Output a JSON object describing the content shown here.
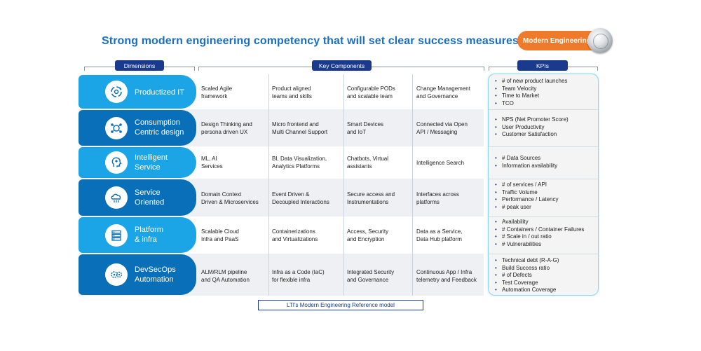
{
  "title": "Strong modern engineering competency that will set clear success measures",
  "badge": {
    "label": "Modern Engineering"
  },
  "headers": {
    "dimensions": "Dimensions",
    "components": "Key Components",
    "kpis": "KPIs"
  },
  "colors": {
    "title": "#1b6ec2",
    "badge": "#f07a2c",
    "header_pill": "#1a3a8e",
    "dim_light": "#1ba4e6",
    "dim_dark": "#0a6fb9"
  },
  "rows": [
    {
      "dimension": "Productized IT",
      "icon": "gear-cycle-icon",
      "components": [
        "Scaled Agile\nframework",
        "Product aligned\nteams and skills",
        "Configurable PODs\nand scalable team",
        "Change Management\nand Governance"
      ],
      "kpis": [
        "# of new product launches",
        "Team Velocity",
        "Time to Market",
        "TCO"
      ]
    },
    {
      "dimension": "Consumption\nCentric design",
      "icon": "people-network-icon",
      "components": [
        "Design Thinking and\npersona driven UX",
        "Micro frontend and\nMulti Channel Support",
        "Smart Devices\nand IoT",
        "Connected via Open\nAPI / Messaging"
      ],
      "kpis": [
        "NPS (Net Promoter Score)",
        "User Productivity",
        "Customer Satisfaction"
      ]
    },
    {
      "dimension": "Intelligent\nService",
      "icon": "brain-head-icon",
      "components": [
        "ML, AI\nServices",
        "BI, Data Visualization,\nAnalytics Platforms",
        "Chatbots, Virtual\nassistants",
        "Intelligence Search"
      ],
      "kpis": [
        "# Data Sources",
        "Information availability"
      ]
    },
    {
      "dimension": "Service\nOriented",
      "icon": "cloud-service-icon",
      "components": [
        "Domain Context\nDriven & Microservices",
        "Event Driven &\nDecoupled Interactions",
        "Secure access and\nInstrumentations",
        "Interfaces across\nplatforms"
      ],
      "kpis": [
        "# of services / API",
        "Traffic Volume",
        "Performance / Latency",
        "# peak user"
      ]
    },
    {
      "dimension": "Platform\n& infra",
      "icon": "server-stack-icon",
      "components": [
        "Scalable Cloud\nInfra and PaaS",
        "Containerizations\nand Virtualizations",
        "Access, Security\nand Encryption",
        "Data as a Service,\nData Hub platform"
      ],
      "kpis": [
        "Availability",
        "# Containers / Container Failures",
        "# Scale in / out ratio",
        "# Vulnerabilities"
      ]
    },
    {
      "dimension": "DevSecOps\nAutomation",
      "icon": "gears-icon",
      "components": [
        "ALM/RLM pipeline\nand QA Automation",
        "Infra as a Code (IaC)\nfor flexible infra",
        "Integrated Security\nand Governance",
        "Continuous App /  Infra\ntelemetry and Feedback"
      ],
      "kpis": [
        "Technical debt (R-A-G)",
        "Build Success ratio",
        "# of Defects",
        "Test Coverage",
        "Automation Coverage"
      ]
    }
  ],
  "footer": "LTI's Modern Engineering Reference model"
}
